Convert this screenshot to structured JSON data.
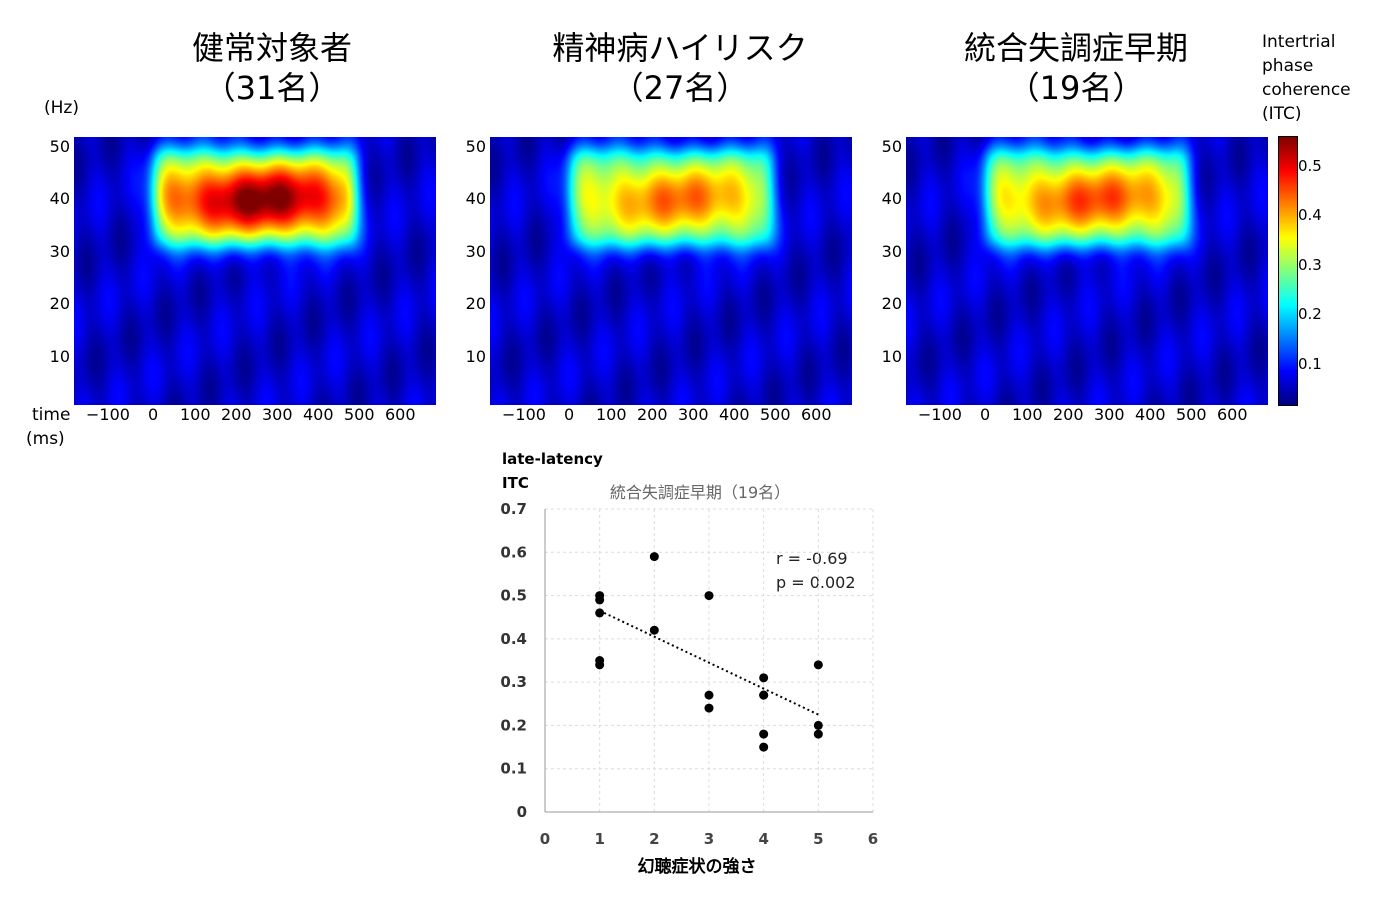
{
  "heatmaps": {
    "y_unit": "(Hz)",
    "x_unit_line1": "time",
    "x_unit_line2": "(ms)",
    "y_ticks": [
      "50",
      "40",
      "30",
      "20",
      "10"
    ],
    "x_ticks": [
      "−100",
      "0",
      "100",
      "200",
      "300",
      "400",
      "500",
      "600"
    ],
    "panels": [
      {
        "title_line1": "健常対象者",
        "title_line2": "（31名）",
        "peak": 0.56
      },
      {
        "title_line1": "精神病ハイリスク",
        "title_line2": "（27名）",
        "peak": 0.43
      },
      {
        "title_line1": "統合失調症早期",
        "title_line2": "（19名）",
        "peak": 0.45
      }
    ]
  },
  "colorbar": {
    "label_lines": [
      "Intertrial",
      "phase",
      "coherence",
      "(ITC)"
    ],
    "ticks": [
      "0.5",
      "0.4",
      "0.3",
      "0.2",
      "0.1"
    ],
    "colormap": "jet"
  },
  "chart_data": [
    {
      "type": "heatmap",
      "title": "健常対象者（31名）",
      "xlabel": "time (ms)",
      "ylabel": "(Hz)",
      "xlim": [
        -175,
        700
      ],
      "ylim": [
        0,
        52
      ],
      "stimulus_window_ms": [
        0,
        500
      ],
      "peak_band_hz": [
        30,
        50
      ],
      "peak_frequency_hz": 40,
      "peak_itc": 0.56
    },
    {
      "type": "heatmap",
      "title": "精神病ハイリスク（27名）",
      "xlabel": "time (ms)",
      "ylabel": "(Hz)",
      "xlim": [
        -175,
        700
      ],
      "ylim": [
        0,
        52
      ],
      "stimulus_window_ms": [
        0,
        500
      ],
      "peak_band_hz": [
        30,
        50
      ],
      "peak_frequency_hz": 40,
      "peak_itc": 0.43
    },
    {
      "type": "heatmap",
      "title": "統合失調症早期（19名）",
      "xlabel": "time (ms)",
      "ylabel": "(Hz)",
      "xlim": [
        -175,
        700
      ],
      "ylim": [
        0,
        52
      ],
      "stimulus_window_ms": [
        0,
        500
      ],
      "peak_band_hz": [
        30,
        50
      ],
      "peak_frequency_hz": 40,
      "peak_itc": 0.45
    },
    {
      "type": "scatter",
      "title": "統合失調症早期（19名）",
      "ylabel_line1": "late-latency",
      "ylabel_line2": "ITC",
      "xlabel": "幻聴症状の強さ",
      "xlim": [
        0,
        6
      ],
      "ylim": [
        0,
        0.7
      ],
      "x_ticks": [
        "0",
        "1",
        "2",
        "3",
        "4",
        "5",
        "6"
      ],
      "y_ticks": [
        "0",
        "0.1",
        "0.2",
        "0.3",
        "0.4",
        "0.5",
        "0.6",
        "0.7"
      ],
      "grid": true,
      "points": [
        {
          "x": 1,
          "y": 0.5
        },
        {
          "x": 1,
          "y": 0.49
        },
        {
          "x": 1,
          "y": 0.46
        },
        {
          "x": 1,
          "y": 0.35
        },
        {
          "x": 1,
          "y": 0.34
        },
        {
          "x": 2,
          "y": 0.59
        },
        {
          "x": 2,
          "y": 0.42
        },
        {
          "x": 3,
          "y": 0.5
        },
        {
          "x": 3,
          "y": 0.27
        },
        {
          "x": 3,
          "y": 0.24
        },
        {
          "x": 4,
          "y": 0.31
        },
        {
          "x": 4,
          "y": 0.27
        },
        {
          "x": 4,
          "y": 0.27
        },
        {
          "x": 4,
          "y": 0.18
        },
        {
          "x": 4,
          "y": 0.15
        },
        {
          "x": 5,
          "y": 0.34
        },
        {
          "x": 5,
          "y": 0.2
        },
        {
          "x": 5,
          "y": 0.18
        }
      ],
      "trendline": {
        "x": [
          1,
          5
        ],
        "y": [
          0.465,
          0.225
        ]
      },
      "annotation_line1": "r = -0.69",
      "annotation_line2": "p = 0.002"
    }
  ]
}
